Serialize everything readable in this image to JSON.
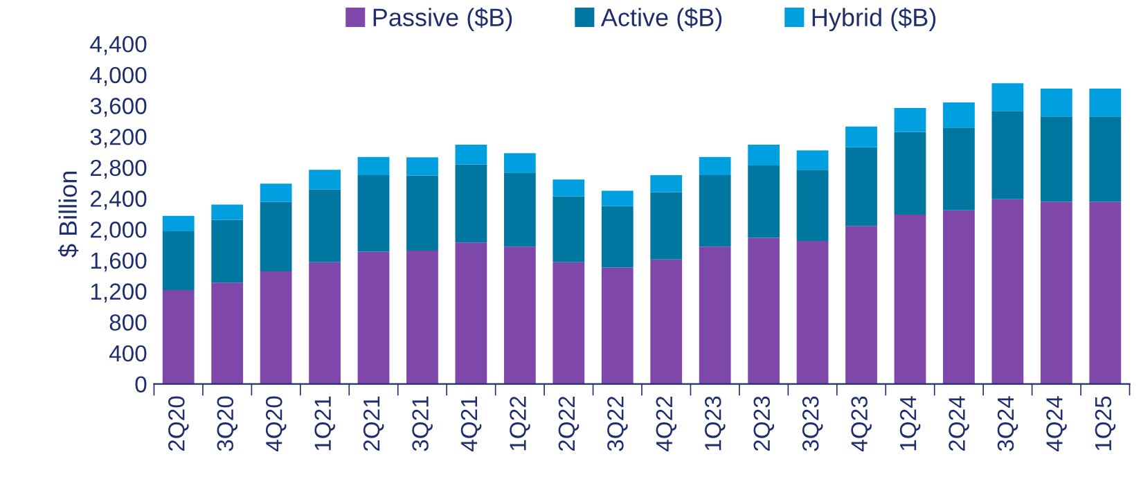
{
  "chart_data": {
    "type": "bar",
    "stacked": true,
    "ylabel": "$ Billion",
    "legend": "top",
    "grid": false,
    "categories": [
      "2Q20",
      "3Q20",
      "4Q20",
      "1Q21",
      "2Q21",
      "3Q21",
      "4Q21",
      "1Q22",
      "2Q22",
      "3Q22",
      "4Q22",
      "1Q23",
      "2Q23",
      "3Q23",
      "4Q23",
      "1Q24",
      "2Q24",
      "3Q24",
      "4Q24",
      "1Q25"
    ],
    "ylim": [
      0,
      4400
    ],
    "yticks": [
      {
        "value": 0,
        "label": "0"
      },
      {
        "value": 400,
        "label": "400"
      },
      {
        "value": 800,
        "label": "800"
      },
      {
        "value": 1200,
        "label": "1,200"
      },
      {
        "value": 1600,
        "label": "1,600"
      },
      {
        "value": 2000,
        "label": "2,000"
      },
      {
        "value": 2400,
        "label": "2,400"
      },
      {
        "value": 2800,
        "label": "2,800"
      },
      {
        "value": 3200,
        "label": "3,200"
      },
      {
        "value": 3600,
        "label": "3,600"
      },
      {
        "value": 4000,
        "label": "4,000"
      },
      {
        "value": 4400,
        "label": "4,400"
      }
    ],
    "series": [
      {
        "name": "Passive ($B)",
        "color": "#8047ab",
        "values": [
          1215,
          1310,
          1455,
          1575,
          1710,
          1725,
          1830,
          1775,
          1575,
          1505,
          1610,
          1775,
          1890,
          1850,
          2045,
          2190,
          2245,
          2390,
          2355,
          2355
        ]
      },
      {
        "name": "Active ($B)",
        "color": "#0077a0",
        "values": [
          760,
          810,
          900,
          940,
          990,
          970,
          1010,
          960,
          850,
          795,
          870,
          925,
          935,
          920,
          1015,
          1070,
          1070,
          1140,
          1105,
          1105
        ]
      },
      {
        "name": "Hybrid ($B)",
        "color": "#009fe0",
        "values": [
          200,
          200,
          235,
          255,
          235,
          235,
          255,
          250,
          220,
          200,
          220,
          235,
          270,
          250,
          270,
          310,
          325,
          360,
          360,
          360
        ]
      }
    ]
  }
}
